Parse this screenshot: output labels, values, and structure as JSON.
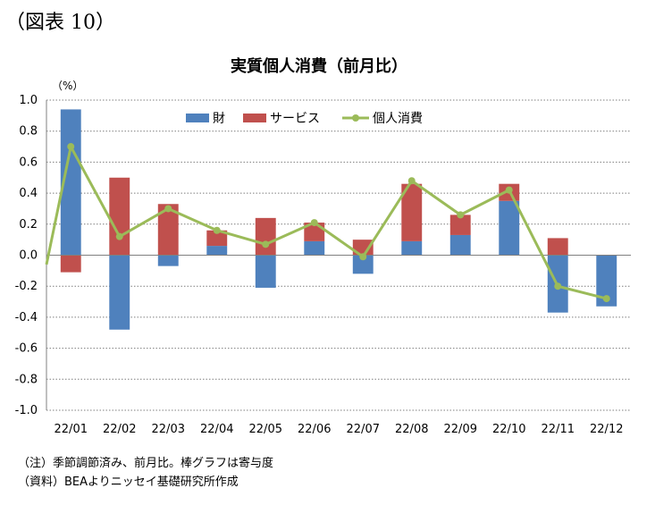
{
  "figure_label": "（図表 10）",
  "notes": {
    "note1": "（注）季節調節済み、前月比。棒グラフは寄与度",
    "note2": "（資料）BEAよりニッセイ基礎研究所作成"
  },
  "colors": {
    "goods": "#4f81bd",
    "services": "#c0504d",
    "total": "#9bbb59",
    "grid": "#7f7f7f"
  },
  "chart_data": {
    "type": "bar",
    "stacked": true,
    "title": "実質個人消費（前月比）",
    "unit_label": "（%）",
    "categories": [
      "22/01",
      "22/02",
      "22/03",
      "22/04",
      "22/05",
      "22/06",
      "22/07",
      "22/08",
      "22/09",
      "22/10",
      "22/11",
      "22/12"
    ],
    "ylim": [
      -1.0,
      1.0
    ],
    "yticks": [
      "1.0",
      "0.8",
      "0.6",
      "0.4",
      "0.2",
      "0.0",
      "-0.2",
      "-0.4",
      "-0.6",
      "-0.8",
      "-1.0"
    ],
    "ytick_values": [
      1.0,
      0.8,
      0.6,
      0.4,
      0.2,
      0.0,
      -0.2,
      -0.4,
      -0.6,
      -0.8,
      -1.0
    ],
    "grid": "horizontal dotted",
    "legend_position": "top-center",
    "series": [
      {
        "name": "財",
        "kind": "bar",
        "values": [
          0.94,
          -0.48,
          -0.07,
          0.06,
          -0.21,
          0.09,
          -0.12,
          0.09,
          0.13,
          0.35,
          -0.37,
          -0.33
        ]
      },
      {
        "name": "サービス",
        "kind": "bar",
        "values": [
          -0.11,
          0.5,
          0.33,
          0.1,
          0.24,
          0.12,
          0.1,
          0.37,
          0.13,
          0.11,
          0.11,
          0.0
        ]
      },
      {
        "name": "個人消費",
        "kind": "line",
        "values": [
          0.7,
          0.12,
          0.3,
          0.16,
          0.07,
          0.21,
          -0.01,
          0.48,
          0.26,
          0.42,
          -0.2,
          -0.28
        ]
      }
    ]
  }
}
